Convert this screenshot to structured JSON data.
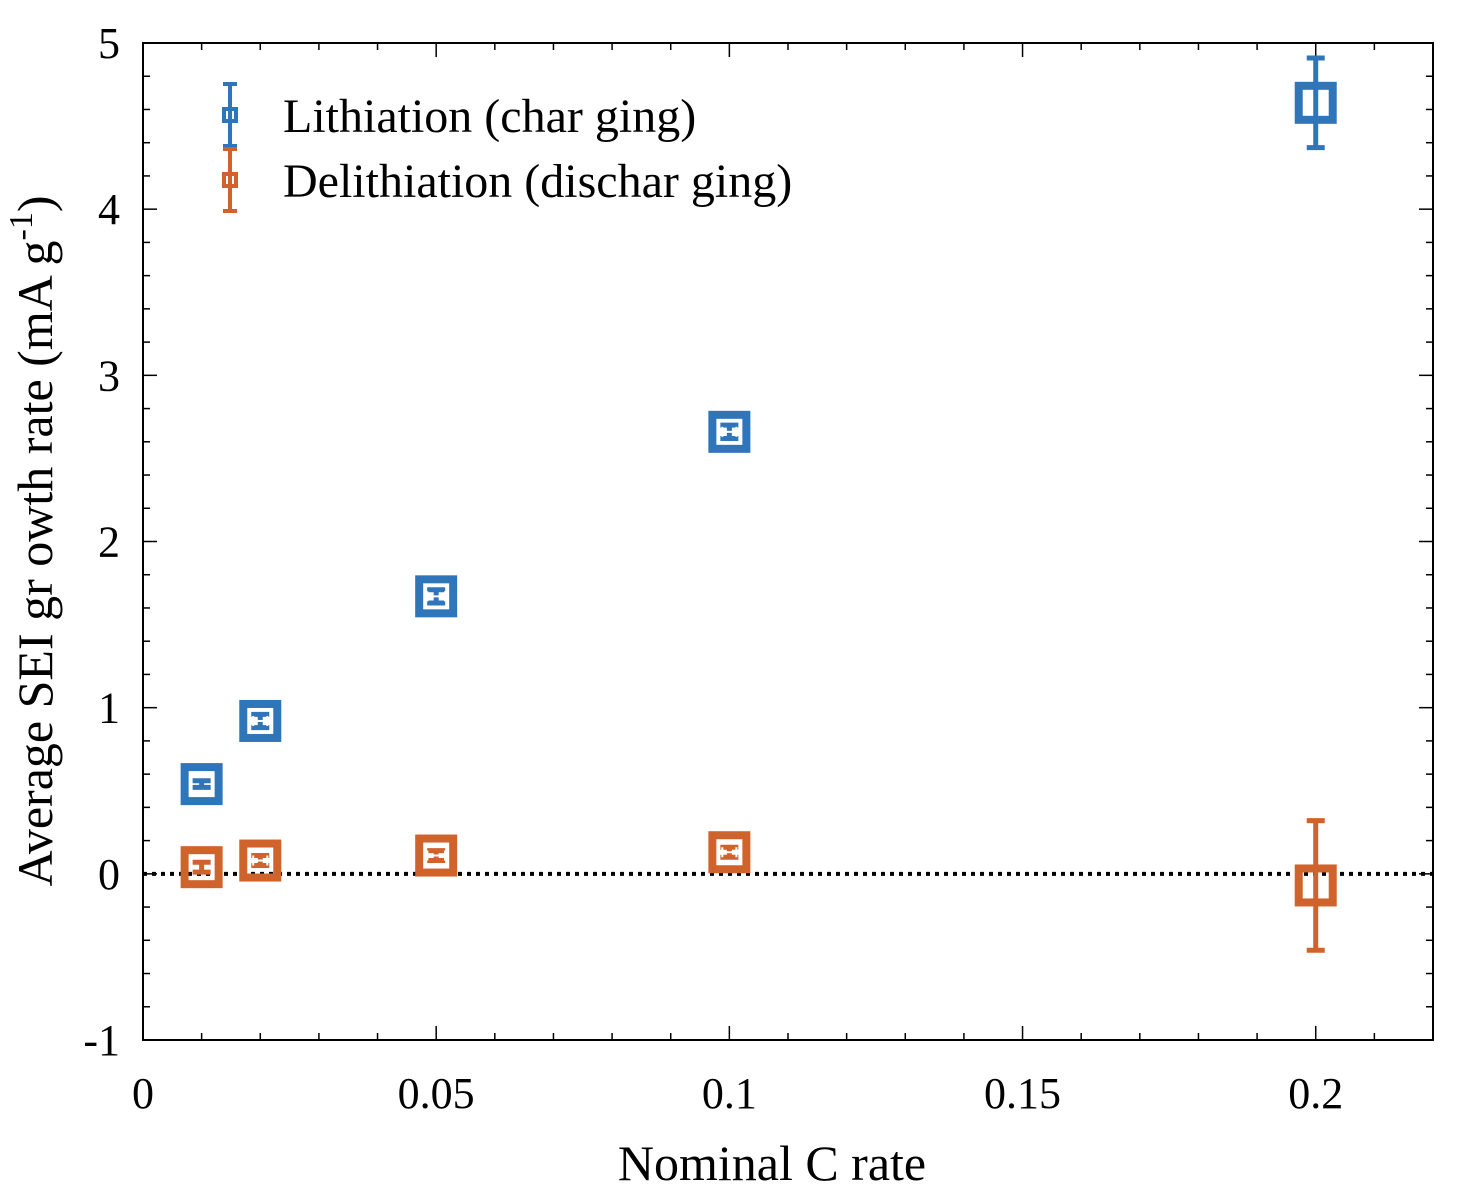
{
  "chart_data": {
    "type": "scatter",
    "title": "",
    "xlabel": "Nominal C rate",
    "ylabel": "Average SEI gr  owth rate (mA g  -1)",
    "ylabel_main": "Average SEI gr  owth rate (mA g",
    "ylabel_sup": "-1",
    "ylabel_close": ")",
    "xlim": [
      0,
      0.22
    ],
    "ylim": [
      -1,
      5
    ],
    "xticks": [
      0,
      0.05,
      0.1,
      0.15,
      0.2
    ],
    "xtick_labels": [
      "0",
      "0.05",
      "0.1",
      "0.15",
      "0.2"
    ],
    "yticks": [
      -1,
      0,
      1,
      2,
      3,
      4,
      5
    ],
    "ytick_labels": [
      "-1",
      "0",
      "1",
      "2",
      "3",
      "4",
      "5"
    ],
    "reference_line": {
      "y": 0,
      "style": "dotted",
      "color": "#000000"
    },
    "legend_position": "top-left",
    "series": [
      {
        "name": "Lithiation (char ging)",
        "color": "#2E75BA",
        "marker": "square",
        "x": [
          0.01,
          0.02,
          0.05,
          0.1,
          0.2
        ],
        "y": [
          0.54,
          0.92,
          1.67,
          2.66,
          4.64
        ],
        "yerr": [
          0.02,
          0.04,
          0.04,
          0.04,
          0.27
        ],
        "xerr": [
          0.0,
          0.0012,
          0.0015,
          0.0012,
          0.0
        ]
      },
      {
        "name": "Delithiation (dischar  ging)",
        "color": "#D0622B",
        "marker": "square",
        "x": [
          0.01,
          0.02,
          0.05,
          0.1,
          0.2
        ],
        "y": [
          0.04,
          0.08,
          0.11,
          0.13,
          -0.07
        ],
        "yerr": [
          0.03,
          0.03,
          0.03,
          0.03,
          0.39
        ],
        "xerr": [
          0.0,
          0.0012,
          0.0015,
          0.0012,
          0.0
        ]
      }
    ]
  }
}
